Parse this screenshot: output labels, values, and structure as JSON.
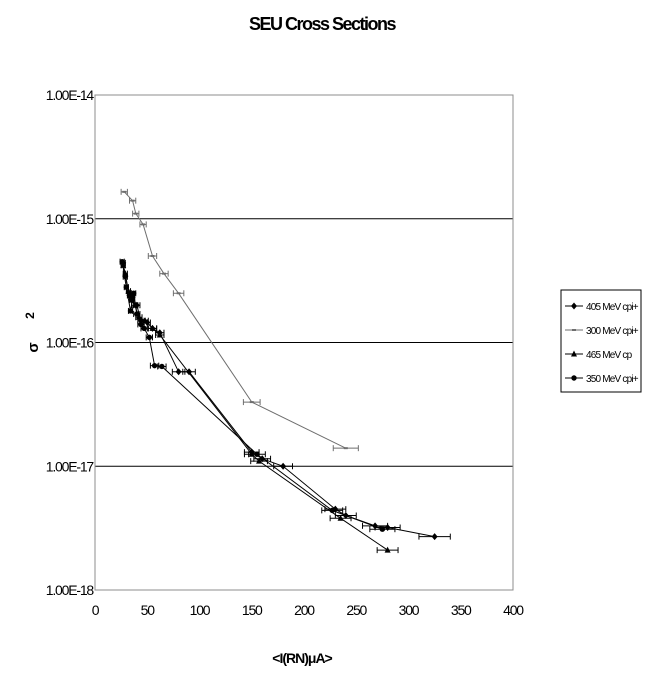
{
  "chart_data": {
    "type": "scatter",
    "title": "SEU Cross Sections",
    "xlabel": "<I(RN)μA>",
    "ylabel": "σ",
    "ylabel_sup": "2",
    "xlim": [
      0,
      400
    ],
    "ylim": [
      1e-18,
      1e-14
    ],
    "yscale": "log",
    "grid": "horizontal",
    "legend_position": "right",
    "x_ticks": [
      "0",
      "50",
      "100",
      "150",
      "200",
      "250",
      "300",
      "350",
      "400"
    ],
    "y_ticks": [
      "1.00E-18",
      "1.00E-17",
      "1.00E-16",
      "1.00E-15",
      "1.00E-14"
    ],
    "series": [
      {
        "name": "405 MeV cpi+",
        "marker": "diamond",
        "color": "#000000",
        "x": [
          27,
          29,
          33,
          36,
          40,
          44,
          50,
          55,
          62,
          80,
          90,
          150,
          160,
          180,
          230,
          240,
          268,
          280,
          325
        ],
        "y": [
          4.4e-16,
          3.4e-16,
          2.4e-16,
          2.3e-16,
          2e-16,
          1.5e-16,
          1.45e-16,
          1.3e-16,
          1.2e-16,
          5.8e-17,
          5.8e-17,
          1.3e-17,
          1.15e-17,
          1e-17,
          4.5e-18,
          4e-18,
          3.3e-18,
          3.2e-18,
          2.7e-18
        ],
        "xerr": [
          2,
          2,
          2,
          2,
          3,
          3,
          3,
          4,
          4,
          6,
          6,
          7,
          8,
          9,
          10,
          10,
          12,
          12,
          15
        ]
      },
      {
        "name": "300 MeV cpi+",
        "marker": "dash",
        "color": "#6e6e6e",
        "x": [
          28,
          36,
          39,
          46,
          55,
          66,
          80,
          150,
          240
        ],
        "y": [
          1.65e-15,
          1.4e-15,
          1.1e-15,
          9e-16,
          5e-16,
          3.6e-16,
          2.5e-16,
          3.3e-17,
          1.4e-17
        ],
        "xerr": [
          3,
          3,
          3,
          3,
          4,
          4,
          5,
          8,
          12
        ]
      },
      {
        "name": "465 MeV cp",
        "marker": "triangle",
        "color": "#000000",
        "x": [
          27,
          29,
          32,
          35,
          38,
          42,
          48,
          55,
          62,
          150,
          157,
          235,
          280
        ],
        "y": [
          4.2e-16,
          3.6e-16,
          2.6e-16,
          2.2e-16,
          2e-16,
          1.6e-16,
          1.5e-16,
          1.3e-16,
          1.15e-16,
          1.25e-17,
          1.1e-17,
          3.8e-18,
          2.1e-18
        ],
        "xerr": [
          2,
          2,
          2,
          2,
          3,
          3,
          3,
          4,
          4,
          7,
          8,
          10,
          10
        ]
      },
      {
        "name": "350 MeV cpi+",
        "marker": "circle",
        "color": "#000000",
        "x": [
          26,
          30,
          34,
          37,
          40,
          44,
          47,
          52,
          57,
          64,
          155,
          227,
          275
        ],
        "y": [
          4.5e-16,
          2.8e-16,
          1.8e-16,
          2.5e-16,
          1.7e-16,
          1.4e-16,
          1.3e-16,
          1.1e-16,
          6.5e-17,
          6.4e-17,
          1.25e-17,
          4.4e-18,
          3.1e-18
        ],
        "xerr": [
          2,
          2,
          2,
          2,
          3,
          3,
          3,
          3,
          4,
          4,
          8,
          10,
          12
        ]
      }
    ]
  }
}
